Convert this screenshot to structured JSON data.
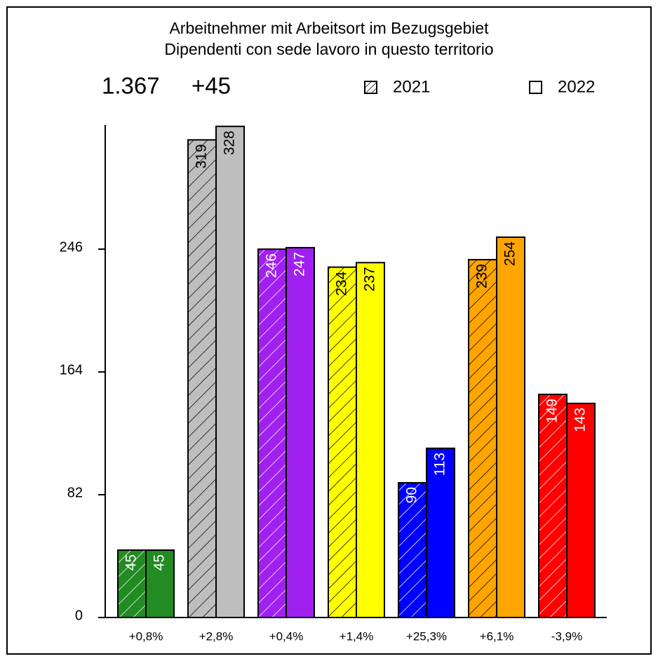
{
  "chart_data": {
    "type": "bar",
    "title": "Arbeitnehmer mit Arbeitsort im Bezugsgebiet",
    "subtitle": "Dipendenti con sede lavoro in questo territorio",
    "headline": {
      "total": "1.367",
      "change": "+45"
    },
    "categories": [
      "+0,8%",
      "+2,8%",
      "+0,4%",
      "+1,4%",
      "+25,3%",
      "+6,1%",
      "-3,9%"
    ],
    "colors": [
      "#228b22",
      "#bebebe",
      "#a020f0",
      "#ffff00",
      "#0000ff",
      "#ffa500",
      "#ff0000"
    ],
    "series": [
      {
        "name": "2021",
        "pattern": "hatch",
        "values": [
          45,
          319,
          246,
          234,
          90,
          239,
          149
        ]
      },
      {
        "name": "2022",
        "pattern": "solid",
        "values": [
          45,
          328,
          247,
          237,
          113,
          254,
          143
        ]
      }
    ],
    "ylim": [
      0,
      329
    ],
    "yticks": [
      0,
      82,
      164,
      246
    ],
    "grid": false
  }
}
